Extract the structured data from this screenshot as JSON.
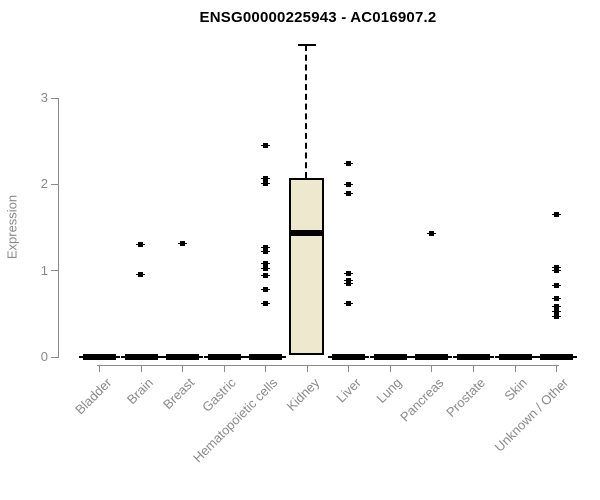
{
  "chart_data": {
    "type": "boxplot",
    "title": "ENSG00000225943 - AC016907.2",
    "ylabel": "Expression",
    "xlabel": "",
    "yticks": [
      0,
      1,
      2,
      3
    ],
    "ylim": [
      0,
      3.7
    ],
    "grid": false,
    "legend": "none",
    "categories": [
      "Bladder",
      "Brain",
      "Breast",
      "Gastric",
      "Hematopoietic cells",
      "Kidney",
      "Liver",
      "Lung",
      "Pancreas",
      "Prostate",
      "Skin",
      "Unknown / Other"
    ],
    "groups": [
      {
        "category": "Bladder",
        "q1": 0,
        "median": 0,
        "q3": 0,
        "whisker_low": 0,
        "whisker_high": 0,
        "outliers": []
      },
      {
        "category": "Brain",
        "q1": 0,
        "median": 0,
        "q3": 0,
        "whisker_low": 0,
        "whisker_high": 0,
        "outliers": [
          1.3,
          0.96
        ]
      },
      {
        "category": "Breast",
        "q1": 0,
        "median": 0,
        "q3": 0,
        "whisker_low": 0,
        "whisker_high": 0,
        "outliers": [
          1.32
        ]
      },
      {
        "category": "Gastric",
        "q1": 0,
        "median": 0,
        "q3": 0,
        "whisker_low": 0,
        "whisker_high": 0,
        "outliers": []
      },
      {
        "category": "Hematopoietic cells",
        "q1": 0,
        "median": 0,
        "q3": 0,
        "whisker_low": 0,
        "whisker_high": 0,
        "outliers": [
          2.45,
          2.07,
          2.01,
          1.27,
          1.22,
          1.08,
          1.03,
          0.95,
          0.78,
          0.62
        ]
      },
      {
        "category": "Kidney",
        "q1": 0.02,
        "median": 1.44,
        "q3": 2.07,
        "whisker_low": 0.02,
        "whisker_high": 3.62,
        "outliers": []
      },
      {
        "category": "Liver",
        "q1": 0,
        "median": 0,
        "q3": 0,
        "whisker_low": 0,
        "whisker_high": 0,
        "outliers": [
          2.24,
          2.0,
          1.9,
          0.97,
          0.89,
          0.85,
          0.62
        ]
      },
      {
        "category": "Lung",
        "q1": 0,
        "median": 0,
        "q3": 0,
        "whisker_low": 0,
        "whisker_high": 0,
        "outliers": []
      },
      {
        "category": "Pancreas",
        "q1": 0,
        "median": 0,
        "q3": 0,
        "whisker_low": 0,
        "whisker_high": 0,
        "outliers": [
          1.43
        ]
      },
      {
        "category": "Prostate",
        "q1": 0,
        "median": 0,
        "q3": 0,
        "whisker_low": 0,
        "whisker_high": 0,
        "outliers": []
      },
      {
        "category": "Skin",
        "q1": 0,
        "median": 0,
        "q3": 0,
        "whisker_low": 0,
        "whisker_high": 0,
        "outliers": []
      },
      {
        "category": "Unknown / Other",
        "q1": 0,
        "median": 0,
        "q3": 0,
        "whisker_low": 0,
        "whisker_high": 0,
        "outliers": [
          1.65,
          1.04,
          1.0,
          0.83,
          0.68,
          0.58,
          0.53,
          0.47
        ]
      }
    ],
    "colors": {
      "box_fill": "#ede8ce",
      "box_border": "#000000",
      "median": "#000000",
      "outlier": "#000000",
      "axis": "#8a8a8a",
      "tick_label": "#8a8a8a",
      "title": "#000000"
    }
  }
}
